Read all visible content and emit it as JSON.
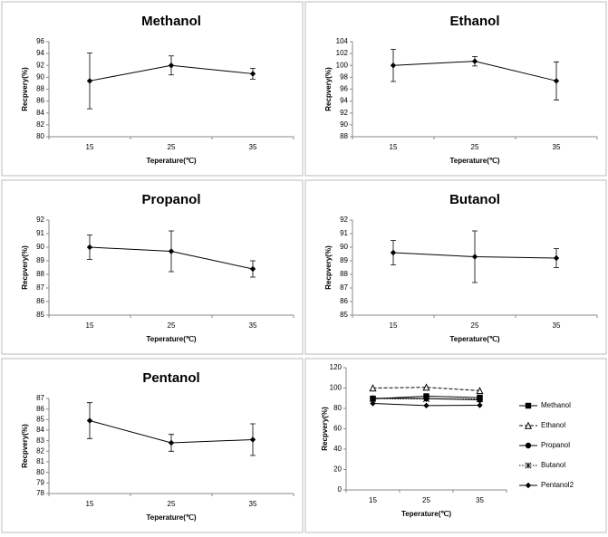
{
  "chart_data": [
    {
      "type": "line",
      "title": "Methanol",
      "xlabel": "Teperature(℃)",
      "ylabel": "Recpvery(%)",
      "categories": [
        "15",
        "25",
        "35"
      ],
      "values": [
        89.4,
        92,
        90.6
      ],
      "errors": [
        4.7,
        1.6,
        0.9
      ],
      "color": "#000000",
      "marker": "diamond",
      "ylim": [
        80,
        96
      ],
      "yticks": [
        80,
        82,
        84,
        86,
        88,
        90,
        92,
        94,
        96
      ]
    },
    {
      "type": "line",
      "title": "Ethanol",
      "xlabel": "Teperature(℃)",
      "ylabel": "Recpvery(%)",
      "categories": [
        "15",
        "25",
        "35"
      ],
      "values": [
        100,
        100.7,
        97.4
      ],
      "errors": [
        2.7,
        0.8,
        3.2
      ],
      "color": "#000000",
      "marker": "diamond",
      "ylim": [
        88,
        104
      ],
      "yticks": [
        88,
        90,
        92,
        94,
        96,
        98,
        100,
        102,
        104
      ]
    },
    {
      "type": "line",
      "title": "Propanol",
      "xlabel": "Teperature(℃)",
      "ylabel": "Recpvery(%)",
      "categories": [
        "15",
        "25",
        "35"
      ],
      "values": [
        90,
        89.7,
        88.4
      ],
      "errors": [
        0.9,
        1.5,
        0.6
      ],
      "color": "#000000",
      "marker": "diamond",
      "ylim": [
        85,
        92
      ],
      "yticks": [
        85,
        86,
        87,
        88,
        89,
        90,
        91,
        92
      ]
    },
    {
      "type": "line",
      "title": "Butanol",
      "xlabel": "Teperature(℃)",
      "ylabel": "Recpvery(%)",
      "categories": [
        "15",
        "25",
        "35"
      ],
      "values": [
        89.6,
        89.3,
        89.2
      ],
      "errors": [
        0.9,
        1.9,
        0.7
      ],
      "color": "#000000",
      "marker": "diamond",
      "ylim": [
        85,
        92
      ],
      "yticks": [
        85,
        86,
        87,
        88,
        89,
        90,
        91,
        92
      ]
    },
    {
      "type": "line",
      "title": "Pentanol",
      "xlabel": "Teperature(℃)",
      "ylabel": "Recpvery(%)",
      "categories": [
        "15",
        "25",
        "35"
      ],
      "values": [
        84.9,
        82.8,
        83.1
      ],
      "errors": [
        1.7,
        0.8,
        1.5
      ],
      "color": "#000000",
      "marker": "diamond",
      "ylim": [
        78,
        87
      ],
      "yticks": [
        78,
        79,
        80,
        81,
        82,
        83,
        84,
        85,
        86,
        87
      ]
    },
    {
      "type": "line",
      "xlabel": "Teperature(℃)",
      "ylabel": "Recpvery(%)",
      "categories": [
        "15",
        "25",
        "35"
      ],
      "legend": "right",
      "ylim": [
        0,
        120
      ],
      "yticks": [
        0,
        20,
        40,
        60,
        80,
        100,
        120
      ],
      "series": [
        {
          "name": "Methanol",
          "color": "#000000",
          "marker": "square",
          "dash": "none",
          "values": [
            89.4,
            92,
            90.6
          ]
        },
        {
          "name": "Ethanol",
          "color": "#000000",
          "marker": "triangle",
          "dash": "dashed",
          "values": [
            100,
            100.7,
            97.4
          ]
        },
        {
          "name": "Propanol",
          "color": "#000000",
          "marker": "circle",
          "dash": "none",
          "values": [
            90,
            89.7,
            88.4
          ]
        },
        {
          "name": "Butanol",
          "color": "#000000",
          "marker": "asterisk",
          "dash": "dotted",
          "values": [
            89.6,
            89.3,
            89.2
          ]
        },
        {
          "name": "Pentanol2",
          "color": "#000000",
          "marker": "diamond",
          "dash": "none",
          "values": [
            84.9,
            82.8,
            83.1
          ]
        }
      ]
    }
  ]
}
